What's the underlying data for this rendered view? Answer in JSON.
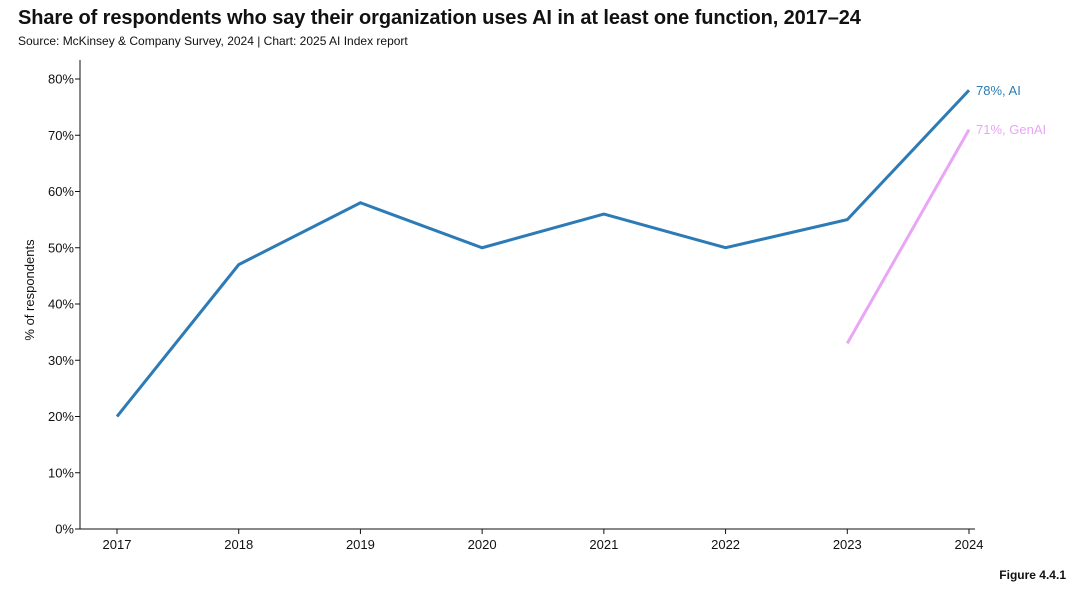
{
  "title": "Share of respondents who say their organization uses AI in at least one function, 2017–24",
  "subtitle": "Source: McKinsey & Company Survey, 2024 | Chart: 2025 AI Index report",
  "figure_label": "Figure 4.4.1",
  "colors": {
    "ai": "#2c7bb6",
    "genai": "#e9a6f5",
    "axis": "#111111"
  },
  "chart_data": {
    "type": "line",
    "title": "Share of respondents who say their organization uses AI in at least one function, 2017–24",
    "xlabel": "",
    "ylabel": "% of respondents",
    "x": [
      2017,
      2018,
      2019,
      2020,
      2021,
      2022,
      2023,
      2024
    ],
    "x_tick_labels": [
      "2017",
      "2018",
      "2019",
      "2020",
      "2021",
      "2022",
      "2023",
      "2024"
    ],
    "ylim": [
      0,
      80
    ],
    "y_ticks": [
      0,
      10,
      20,
      30,
      40,
      50,
      60,
      70,
      80
    ],
    "y_tick_labels": [
      "0%",
      "10%",
      "20%",
      "30%",
      "40%",
      "50%",
      "60%",
      "70%",
      "80%"
    ],
    "grid": false,
    "series": [
      {
        "key": "ai",
        "values": [
          20,
          47,
          58,
          50,
          56,
          50,
          55,
          78
        ],
        "end_label": "78%, AI"
      },
      {
        "key": "genai",
        "values": [
          null,
          null,
          null,
          null,
          null,
          null,
          33,
          71
        ],
        "end_label": "71%, GenAI"
      }
    ]
  }
}
